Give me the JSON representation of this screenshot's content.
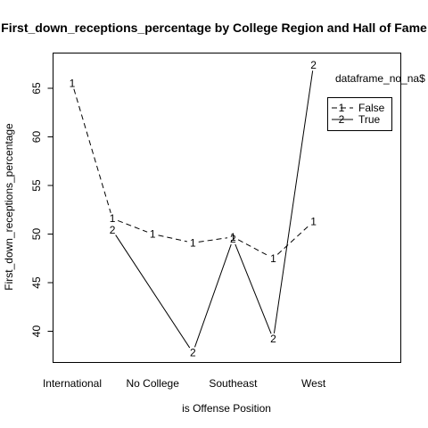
{
  "chart_data": {
    "type": "line",
    "title": "First_down_receptions_percentage by College Region and Hall of Fame",
    "xlabel": "is Offense Position",
    "ylabel": "First_down_receptions_percentage",
    "categories": [
      "International",
      "",
      "No College",
      "",
      "Southeast",
      "",
      "West"
    ],
    "x_tick_labels": [
      "International",
      "No College",
      "Southeast",
      "West"
    ],
    "y_ticks": [
      40,
      45,
      50,
      55,
      60,
      65
    ],
    "ylim": [
      36.5,
      68.5
    ],
    "grid": false,
    "legend": {
      "title": "dataframe_no_na$",
      "placement": "top-right",
      "entries": [
        {
          "symbol": "1",
          "label": "False",
          "dash": "dashed"
        },
        {
          "symbol": "2",
          "label": "True",
          "dash": "solid"
        }
      ]
    },
    "series": [
      {
        "name": "False",
        "symbol": "1",
        "dash": "dashed",
        "values": [
          65.5,
          51.6,
          50.0,
          49.1,
          49.7,
          47.5,
          51.3
        ]
      },
      {
        "name": "True",
        "symbol": "2",
        "dash": "solid",
        "values": [
          null,
          50.4,
          null,
          37.8,
          49.5,
          39.2,
          67.4
        ]
      }
    ]
  }
}
